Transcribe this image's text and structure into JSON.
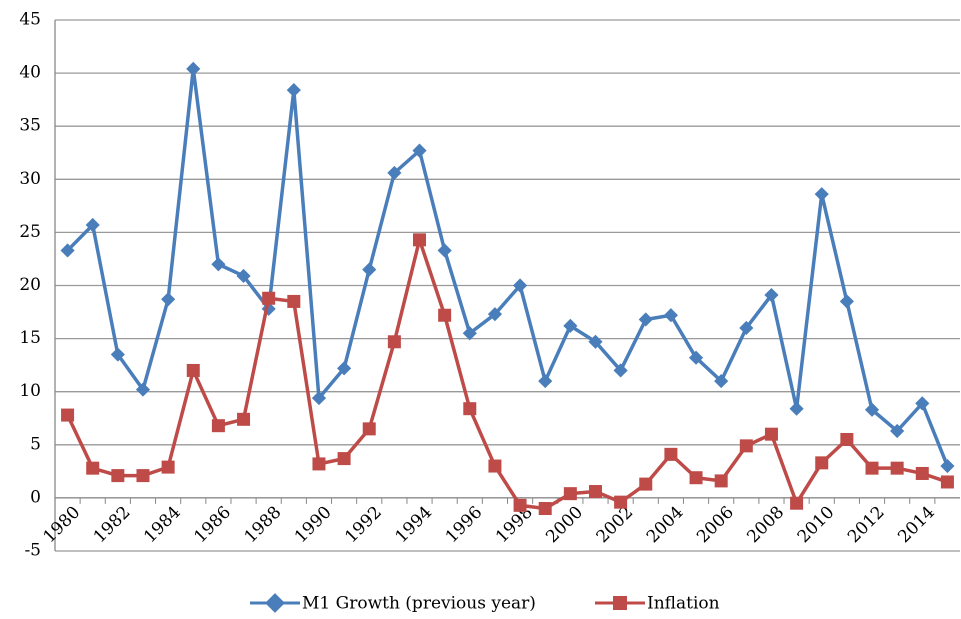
{
  "chart_data": {
    "type": "line",
    "categories": [
      "1980",
      null,
      "1982",
      null,
      "1984",
      null,
      "1986",
      null,
      "1988",
      null,
      "1990",
      null,
      "1992",
      null,
      "1994",
      null,
      "1996",
      null,
      "1998",
      null,
      "2000",
      null,
      "2002",
      null,
      "2004",
      null,
      "2006",
      null,
      "2008",
      null,
      "2010",
      null,
      "2012",
      null,
      "2014",
      null
    ],
    "series": [
      {
        "name": "M1 Growth (previous year)",
        "color": "#4a7ebb",
        "marker": "diamond",
        "values": [
          23.3,
          25.7,
          13.5,
          10.2,
          18.7,
          40.4,
          22.0,
          20.9,
          17.8,
          38.4,
          9.4,
          12.2,
          21.5,
          30.6,
          32.7,
          23.3,
          15.5,
          17.3,
          20.0,
          11.0,
          16.2,
          14.7,
          12.0,
          16.8,
          17.2,
          13.2,
          11.0,
          16.0,
          19.1,
          8.4,
          28.6,
          18.5,
          8.3,
          6.3,
          8.9,
          3.0
        ]
      },
      {
        "name": "Inflation",
        "color": "#be4b48",
        "marker": "square",
        "values": [
          7.8,
          2.8,
          2.1,
          2.1,
          2.9,
          12.0,
          6.8,
          7.4,
          18.8,
          18.5,
          3.2,
          3.7,
          6.5,
          14.7,
          24.3,
          17.2,
          8.4,
          3.0,
          -0.7,
          -1.0,
          0.4,
          0.6,
          -0.4,
          1.3,
          4.1,
          1.9,
          1.6,
          4.9,
          6.0,
          -0.5,
          3.3,
          5.5,
          2.8,
          2.8,
          2.3,
          1.5
        ]
      }
    ],
    "ylim": [
      -5,
      45
    ],
    "yticks": [
      -5,
      0,
      5,
      10,
      15,
      20,
      25,
      30,
      35,
      40,
      45
    ],
    "grid": true,
    "legend": "bottom"
  }
}
